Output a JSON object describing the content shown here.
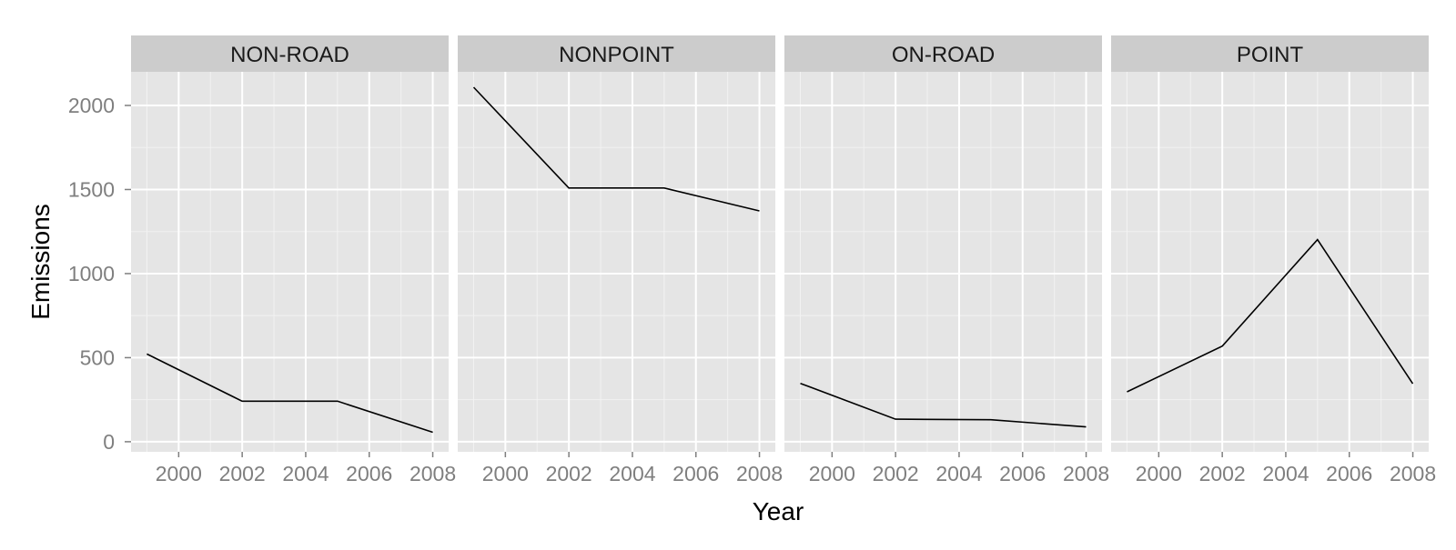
{
  "chart_data": {
    "type": "line",
    "title": "",
    "xlabel": "Year",
    "ylabel": "Emissions",
    "xlim": [
      1998.5,
      2008.5
    ],
    "ylim": [
      -60,
      2200
    ],
    "x_ticks": [
      2000,
      2002,
      2004,
      2006,
      2008
    ],
    "y_ticks": [
      0,
      500,
      1000,
      1500,
      2000
    ],
    "grid": true,
    "line_color": "#000000",
    "panel_background": "#e5e5e5",
    "strip_background": "#cccccc",
    "panels": [
      {
        "name": "NON-ROAD",
        "x": [
          1999,
          2002,
          2005,
          2008
        ],
        "y": [
          522,
          241,
          241,
          56
        ]
      },
      {
        "name": "NONPOINT",
        "x": [
          1999,
          2002,
          2005,
          2008
        ],
        "y": [
          2108,
          1509,
          1509,
          1373
        ]
      },
      {
        "name": "ON-ROAD",
        "x": [
          1999,
          2002,
          2005,
          2008
        ],
        "y": [
          347,
          134,
          131,
          88
        ]
      },
      {
        "name": "POINT",
        "x": [
          1999,
          2002,
          2005,
          2008
        ],
        "y": [
          297,
          569,
          1202,
          345
        ]
      }
    ]
  }
}
